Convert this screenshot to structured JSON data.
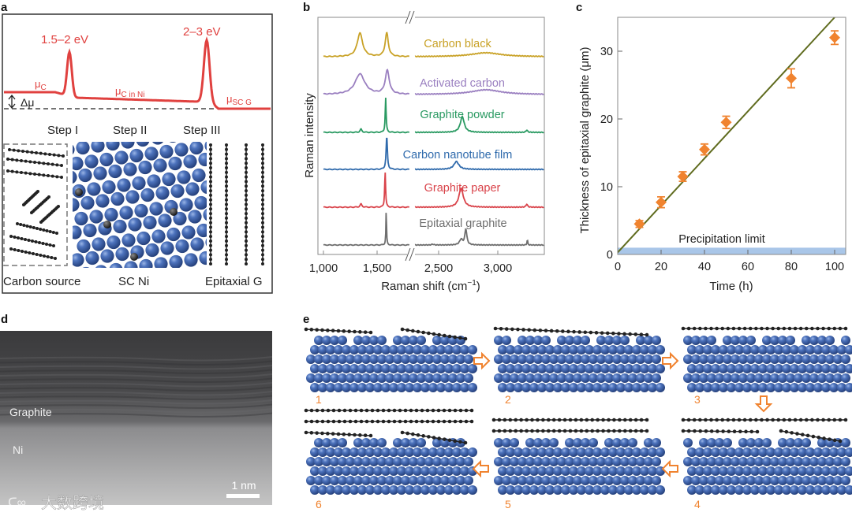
{
  "panel_labels": {
    "a": "a",
    "b": "b",
    "c": "c",
    "d": "d",
    "e": "e"
  },
  "panel_a": {
    "barrier1": "1.5–2 eV",
    "barrier2": "2–3 eV",
    "mu_c": "μ",
    "mu_c_sub": "C",
    "mu_cni": "μ",
    "mu_cni_sub": "C in Ni",
    "mu_scg": "μ",
    "mu_scg_sub": "SC G",
    "delta_mu": "Δμ",
    "steps": [
      "Step I",
      "Step II",
      "Step III"
    ],
    "bottom_labels": [
      "Carbon source",
      "SC Ni",
      "Epitaxial G"
    ],
    "curve_color": "#e0413f",
    "atom_color": "#3f66b0"
  },
  "chart_data": [
    {
      "type": "line",
      "panel": "b",
      "xlabel": "Raman shift (cm⁻¹)",
      "ylabel": "Raman intensity",
      "xticks": [
        "1,000",
        "1,500",
        "2,500",
        "3,000"
      ],
      "axis_break": [
        1800,
        2300
      ],
      "xlim_left": [
        1000,
        1800
      ],
      "xlim_right": [
        2300,
        3390
      ],
      "series": [
        {
          "name": "Carbon black",
          "color": "#c9a227",
          "peaks": [
            [
              1340,
              30,
              60
            ],
            [
              1590,
              30,
              35
            ],
            [
              2900,
              5,
              300
            ]
          ]
        },
        {
          "name": "Activated carbon",
          "color": "#9a7fc0",
          "peaks": [
            [
              1340,
              26,
              110
            ],
            [
              1595,
              30,
              45
            ],
            [
              2900,
              6,
              300
            ]
          ]
        },
        {
          "name": "Graphite powder",
          "color": "#2a9a62",
          "peaks": [
            [
              1350,
              4,
              20
            ],
            [
              1580,
              44,
              10
            ],
            [
              2700,
              20,
              40
            ],
            [
              3245,
              3,
              15
            ]
          ]
        },
        {
          "name": "Carbon nanotube film",
          "color": "#2f6aac",
          "peaks": [
            [
              1590,
              42,
              14
            ],
            [
              2650,
              10,
              50
            ]
          ]
        },
        {
          "name": "Graphite paper",
          "color": "#d9434a",
          "peaks": [
            [
              1350,
              4,
              20
            ],
            [
              1575,
              46,
              10
            ],
            [
              2690,
              24,
              45
            ],
            [
              3245,
              4,
              15
            ]
          ]
        },
        {
          "name": "Epitaxial graphite",
          "color": "#6e6e6e",
          "peaks": [
            [
              1585,
              44,
              7
            ],
            [
              2690,
              7,
              30
            ],
            [
              2730,
              20,
              20
            ],
            [
              2450,
              1,
              20
            ],
            [
              3250,
              7,
              7
            ]
          ]
        }
      ]
    },
    {
      "type": "scatter",
      "panel": "c",
      "xlabel": "Time (h)",
      "ylabel": "Thickness of epitaxial graphite (μm)",
      "xlim": [
        0,
        105
      ],
      "ylim": [
        0,
        35
      ],
      "xticks": [
        0,
        20,
        40,
        60,
        80,
        100
      ],
      "yticks": [
        0,
        10,
        20,
        30
      ],
      "points": [
        {
          "x": 10,
          "y": 4.5,
          "err": 0.5
        },
        {
          "x": 20,
          "y": 7.7,
          "err": 0.8
        },
        {
          "x": 30,
          "y": 11.5,
          "err": 0.7
        },
        {
          "x": 40,
          "y": 15.5,
          "err": 0.8
        },
        {
          "x": 50,
          "y": 19.5,
          "err": 0.9
        },
        {
          "x": 80,
          "y": 26,
          "err": 1.4
        },
        {
          "x": 100,
          "y": 32,
          "err": 1.0
        }
      ],
      "fit_line": [
        [
          0,
          0.3
        ],
        [
          100,
          35
        ]
      ],
      "band": {
        "label": "Precipitation limit",
        "y": [
          0,
          1
        ]
      },
      "point_color": "#f0832f",
      "line_color": "#5f6b1e",
      "band_color": "#a9c6e8"
    }
  ],
  "panel_d": {
    "graphite": "Graphite",
    "ni": "Ni",
    "scale": "1 nm",
    "watermark": "大数跨境"
  },
  "panel_e": {
    "steps": [
      "1",
      "2",
      "3",
      "4",
      "5",
      "6"
    ],
    "arrow_color": "#f0832f"
  }
}
